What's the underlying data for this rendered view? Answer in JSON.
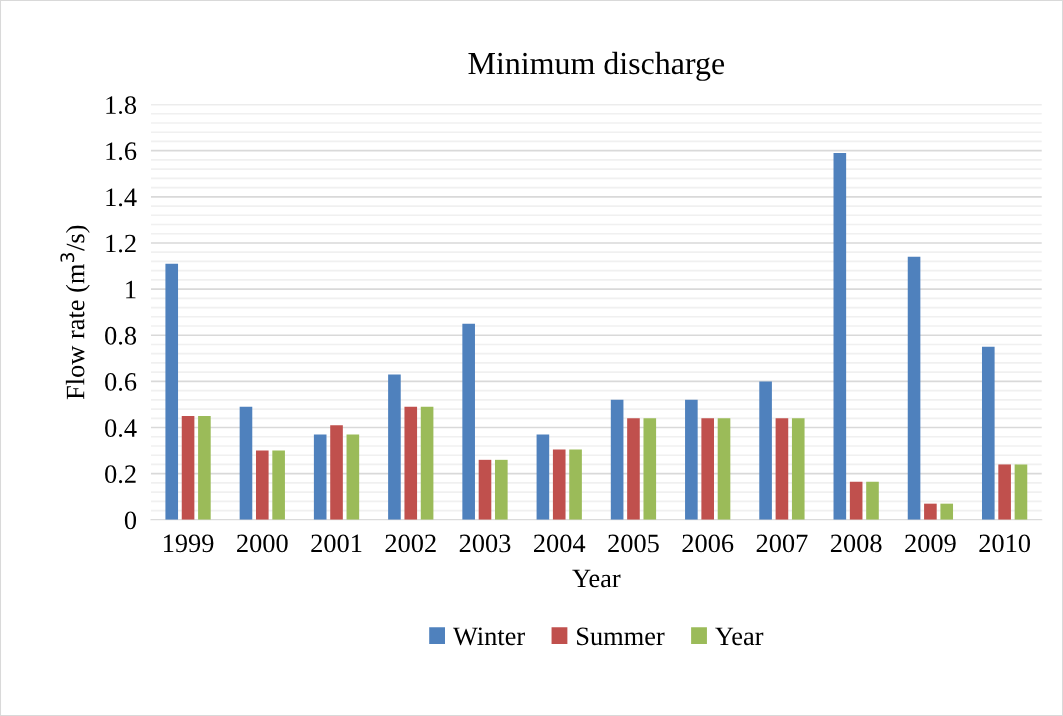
{
  "chart_data": {
    "type": "bar",
    "title": "Minimum discharge",
    "xlabel": "Year",
    "ylabel": "Flow rate (m$^{3}$/s)",
    "categories": [
      "1999",
      "2000",
      "2001",
      "2002",
      "2003",
      "2004",
      "2005",
      "2006",
      "2007",
      "2008",
      "2009",
      "2010"
    ],
    "series": [
      {
        "name": "Winter",
        "color": "#4f81bd",
        "values": [
          1.11,
          0.49,
          0.37,
          0.63,
          0.85,
          0.37,
          0.52,
          0.52,
          0.6,
          1.59,
          1.14,
          0.75
        ]
      },
      {
        "name": "Summer",
        "color": "#c0504d",
        "values": [
          0.45,
          0.3,
          0.41,
          0.49,
          0.26,
          0.305,
          0.44,
          0.44,
          0.44,
          0.165,
          0.07,
          0.24
        ]
      },
      {
        "name": "Year",
        "color": "#9bbb59",
        "values": [
          0.45,
          0.3,
          0.37,
          0.49,
          0.26,
          0.305,
          0.44,
          0.44,
          0.44,
          0.165,
          0.07,
          0.24
        ]
      }
    ],
    "ylim": [
      0,
      1.8
    ],
    "yticks": [
      0,
      0.2,
      0.4,
      0.6,
      0.8,
      1,
      1.2,
      1.4,
      1.6,
      1.8
    ],
    "grid": "y",
    "legend": "bottom"
  }
}
